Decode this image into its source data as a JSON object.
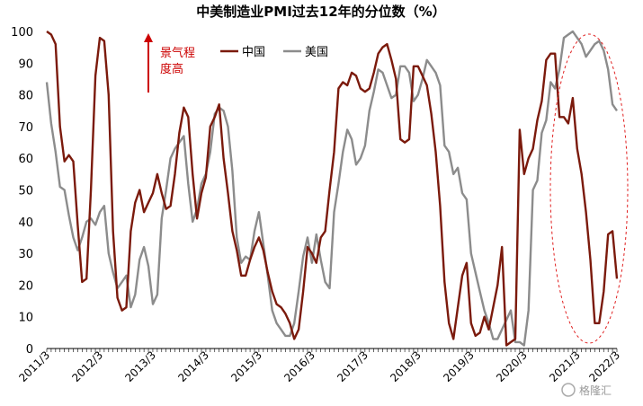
{
  "chart_data": {
    "type": "line",
    "title": "中美制造业PMI过去12年的分位数（%）",
    "xlabel": "",
    "ylabel": "",
    "ylim": [
      0,
      100
    ],
    "yticks": [
      0,
      10,
      20,
      30,
      40,
      50,
      60,
      70,
      80,
      90,
      100
    ],
    "x_tick_labels": [
      "2011/3",
      "2012/3",
      "2013/3",
      "2014/3",
      "2015/3",
      "2016/3",
      "2017/3",
      "2018/3",
      "2019/3",
      "2020/3",
      "2021/3",
      "2022/3"
    ],
    "legend_position": "top-left",
    "annotation_text": "景气程度高",
    "watermark": "格隆汇",
    "colors": {
      "china": "#7b1a0c",
      "us": "#8c8c8c",
      "annotation": "#cc0000",
      "axis": "#000000"
    },
    "series": [
      {
        "name": "中国",
        "color": "#7b1a0c",
        "values": [
          100,
          99,
          96,
          70,
          59,
          61,
          59,
          39,
          21,
          22,
          50,
          86,
          98,
          97,
          80,
          37,
          16,
          12,
          13,
          37,
          46,
          50,
          43,
          46,
          49,
          55,
          49,
          44,
          45,
          55,
          68,
          76,
          73,
          55,
          41,
          49,
          54,
          70,
          73,
          77,
          60,
          49,
          37,
          31,
          23,
          23,
          28,
          32,
          35,
          31,
          24,
          18,
          14,
          13,
          11,
          8,
          3,
          6,
          18,
          32,
          30,
          27,
          35,
          37,
          50,
          62,
          82,
          84,
          83,
          87,
          86,
          82,
          81,
          82,
          87,
          93,
          95,
          96,
          91,
          85,
          66,
          65,
          66,
          89,
          89,
          86,
          83,
          74,
          62,
          45,
          21,
          8,
          3,
          13,
          23,
          27,
          8,
          4,
          5,
          10,
          6,
          13,
          20,
          32,
          1,
          2,
          3,
          69,
          55,
          60,
          63,
          72,
          78,
          91,
          93,
          93,
          73,
          73,
          71,
          79,
          63,
          55,
          43,
          28,
          8,
          8,
          18,
          36,
          37,
          22
        ]
      },
      {
        "name": "美国",
        "color": "#8c8c8c",
        "values": [
          84,
          71,
          62,
          51,
          50,
          42,
          35,
          31,
          35,
          40,
          41,
          39,
          43,
          45,
          30,
          24,
          19,
          21,
          23,
          13,
          17,
          28,
          32,
          26,
          14,
          17,
          41,
          50,
          60,
          63,
          65,
          67,
          52,
          40,
          44,
          52,
          55,
          62,
          74,
          76,
          75,
          70,
          56,
          35,
          27,
          29,
          28,
          37,
          43,
          33,
          23,
          12,
          8,
          6,
          4,
          4,
          8,
          18,
          29,
          35,
          27,
          36,
          28,
          21,
          19,
          43,
          52,
          62,
          69,
          66,
          58,
          60,
          64,
          75,
          81,
          88,
          87,
          83,
          79,
          80,
          89,
          89,
          87,
          78,
          80,
          85,
          91,
          89,
          87,
          83,
          64,
          62,
          55,
          57,
          49,
          47,
          30,
          24,
          18,
          12,
          8,
          3,
          3,
          6,
          9,
          12,
          2,
          2,
          1,
          12,
          50,
          53,
          68,
          72,
          84,
          82,
          88,
          98,
          99,
          100,
          98,
          96,
          92,
          94,
          96,
          97,
          94,
          88,
          77,
          75
        ]
      }
    ]
  }
}
